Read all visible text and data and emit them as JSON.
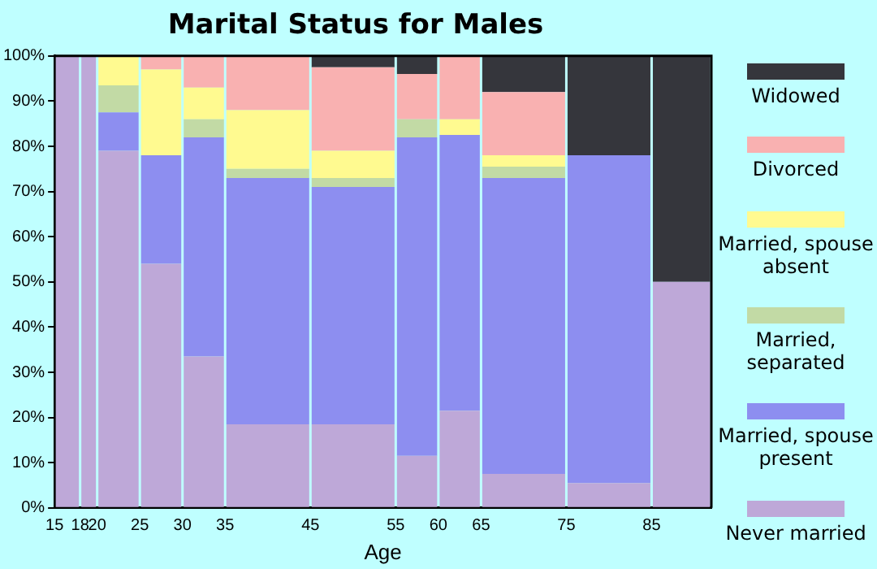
{
  "chart_data": {
    "type": "bar",
    "stacked": true,
    "title": "Marital Status for Males",
    "xlabel": "Age",
    "x": [
      16.5,
      19,
      22.5,
      27.5,
      32.5,
      40,
      50,
      57.5,
      62.5,
      70,
      80,
      88.5
    ],
    "xlim": [
      15,
      92
    ],
    "xticks": [
      15,
      18,
      20,
      25,
      30,
      35,
      45,
      55,
      60,
      65,
      75,
      85
    ],
    "ylim": [
      0,
      100
    ],
    "yticks": [
      {
        "value": 0,
        "label": "0%"
      },
      {
        "value": 10,
        "label": "10%"
      },
      {
        "value": 20,
        "label": "20%"
      },
      {
        "value": 30,
        "label": "30%"
      },
      {
        "value": 40,
        "label": "40%"
      },
      {
        "value": 50,
        "label": "50%"
      },
      {
        "value": 60,
        "label": "60%"
      },
      {
        "value": 70,
        "label": "70%"
      },
      {
        "value": 80,
        "label": "80%"
      },
      {
        "value": 90,
        "label": "90%"
      },
      {
        "value": 100,
        "label": "100%"
      }
    ],
    "grid": false,
    "legend": "right",
    "series": [
      {
        "name": "Never married",
        "color": "#bea8d8",
        "values": [
          100,
          100,
          79,
          54,
          33.5,
          18.5,
          18.5,
          11.5,
          21.5,
          7.5,
          5.5,
          50
        ]
      },
      {
        "name": "Married, spouse present",
        "color": "#8d8ef0",
        "values": [
          0,
          0,
          8.5,
          24,
          48.5,
          54.5,
          52.5,
          70.5,
          61,
          65.5,
          72.5,
          0
        ]
      },
      {
        "name": "Married, separated",
        "color": "#c2daa5",
        "values": [
          0,
          0,
          6,
          0,
          4,
          2,
          2,
          4,
          0,
          2.5,
          0,
          0
        ]
      },
      {
        "name": "Married, spouse absent",
        "color": "#fffa90",
        "values": [
          0,
          0,
          6.5,
          19,
          7,
          13,
          6,
          0,
          3.5,
          2.5,
          0,
          0
        ]
      },
      {
        "name": "Divorced",
        "color": "#f9b1b1",
        "values": [
          0,
          0,
          0,
          3,
          7,
          12,
          18.5,
          10,
          14,
          14,
          0,
          0
        ]
      },
      {
        "name": "Widowed",
        "color": "#35363c",
        "values": [
          0,
          0,
          0,
          0,
          0,
          0,
          2.5,
          4,
          0,
          8,
          22,
          50
        ]
      }
    ]
  }
}
